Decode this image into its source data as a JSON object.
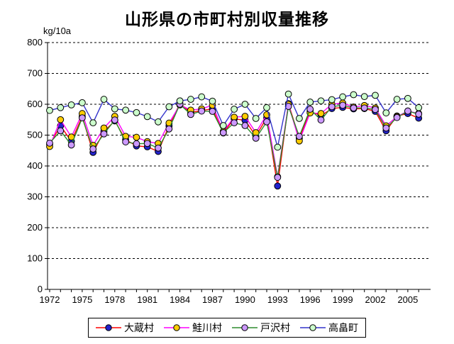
{
  "page": {
    "title": "山形県の市町村別収量推移",
    "unit_label": "kg/10a"
  },
  "chart_data": {
    "type": "line",
    "title": "山形県の市町村別収量推移",
    "xlabel": "",
    "ylabel": "kg/10a",
    "ylim": [
      0,
      800
    ],
    "ytick_step": 100,
    "yticks": [
      0,
      100,
      200,
      300,
      400,
      500,
      600,
      700,
      800
    ],
    "grid": "horizontal-dashed",
    "legend_position": "bottom-center",
    "x": [
      1972,
      1973,
      1974,
      1975,
      1976,
      1977,
      1978,
      1979,
      1980,
      1981,
      1982,
      1983,
      1984,
      1985,
      1986,
      1987,
      1988,
      1989,
      1990,
      1991,
      1992,
      1993,
      1994,
      1995,
      1996,
      1997,
      1998,
      1999,
      2000,
      2001,
      2002,
      2003,
      2004,
      2005,
      2006
    ],
    "xtick_label_years": [
      1972,
      1975,
      1978,
      1981,
      1984,
      1987,
      1990,
      1993,
      1996,
      1999,
      2002,
      2005
    ],
    "series": [
      {
        "name": "大蔵村",
        "line_color": "#FF0000",
        "marker_color": "#2222CC",
        "marker_shape": "circle",
        "values": [
          470,
          530,
          480,
          560,
          444,
          512,
          546,
          485,
          465,
          462,
          447,
          530,
          602,
          573,
          580,
          585,
          507,
          553,
          548,
          497,
          556,
          335,
          602,
          490,
          577,
          563,
          586,
          590,
          585,
          586,
          577,
          514,
          562,
          570,
          555
        ]
      },
      {
        "name": "鮭川村",
        "line_color": "#FF00FF",
        "marker_color": "#FFCC00",
        "marker_shape": "circle",
        "values": [
          463,
          550,
          494,
          570,
          467,
          523,
          561,
          496,
          493,
          479,
          473,
          539,
          598,
          581,
          585,
          597,
          512,
          558,
          561,
          508,
          566,
          365,
          600,
          481,
          572,
          570,
          600,
          604,
          591,
          596,
          588,
          530,
          560,
          578,
          570
        ]
      },
      {
        "name": "戸沢村",
        "line_color": "#2E8B2E",
        "marker_color": "#CC99FF",
        "marker_shape": "circle",
        "values": [
          474,
          514,
          468,
          556,
          455,
          504,
          549,
          478,
          472,
          473,
          458,
          520,
          600,
          567,
          578,
          577,
          508,
          540,
          531,
          490,
          543,
          363,
          593,
          496,
          584,
          549,
          592,
          597,
          588,
          588,
          583,
          523,
          557,
          578,
          568
        ]
      },
      {
        "name": "高畠町",
        "line_color": "#3333CC",
        "marker_color": "#CCFFCC",
        "marker_shape": "circle",
        "values": [
          580,
          589,
          598,
          605,
          540,
          616,
          585,
          581,
          573,
          560,
          543,
          592,
          611,
          616,
          624,
          610,
          531,
          584,
          600,
          554,
          589,
          461,
          633,
          554,
          607,
          611,
          615,
          624,
          631,
          625,
          629,
          572,
          616,
          619,
          589
        ]
      }
    ]
  }
}
